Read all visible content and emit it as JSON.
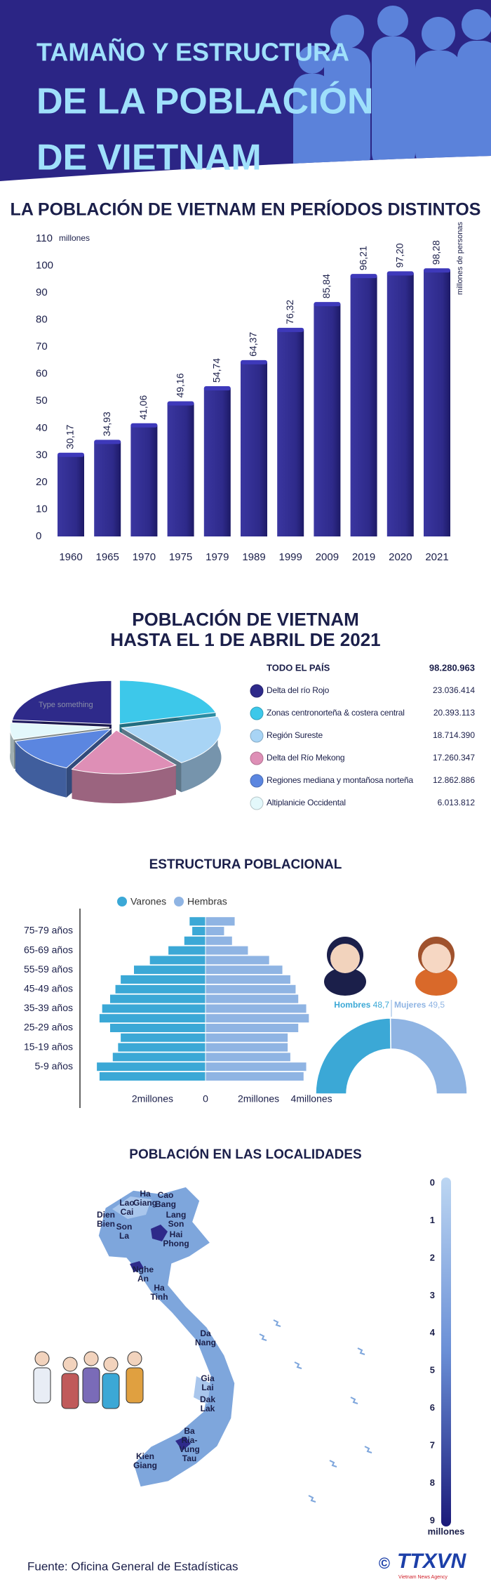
{
  "header": {
    "title_lines": [
      "TAMAÑO Y ESTRUCTURA",
      "DE LA POBLACIÓN",
      "DE VIETNAM"
    ]
  },
  "chart_data": [
    {
      "type": "bar",
      "title": "LA POBLACIÓN DE VIETNAM EN PERÍODOS DISTINTOS",
      "y_unit": "millones",
      "value_note": "millones de personas",
      "categories": [
        "1960",
        "1965",
        "1970",
        "1975",
        "1979",
        "1989",
        "1999",
        "2009",
        "2019",
        "2020",
        "2021"
      ],
      "values": [
        30.17,
        34.93,
        41.06,
        49.16,
        54.74,
        64.37,
        76.32,
        85.84,
        96.21,
        97.2,
        98.28
      ],
      "value_labels": [
        "30,17",
        "34,93",
        "41,06",
        "49,16",
        "54,74",
        "64,37",
        "76,32",
        "85,84",
        "96,21",
        "97,20",
        "98,28"
      ],
      "color": "#2e2a8a",
      "ylim": [
        0,
        110
      ],
      "yticks": [
        0,
        10,
        20,
        30,
        40,
        50,
        60,
        70,
        80,
        90,
        100,
        110
      ],
      "grid": false
    },
    {
      "type": "pie",
      "title_lines": [
        "POBLACIÓN DE VIETNAM",
        "HASTA EL 1 DE ABRIL DE 2021"
      ],
      "total_label": "TODO EL PAÍS",
      "total": {
        "value": 98280963,
        "label": "98.280.963"
      },
      "annotation": "Type something",
      "categories": [
        "Delta del río Rojo",
        "Zonas centronorteña & costera central",
        "Región Sureste",
        "Delta del Río Mekong",
        "Regiones mediana y montañosa norteña",
        "Altiplanicie Occidental"
      ],
      "values": [
        23036414,
        20393113,
        18714390,
        17260347,
        12862886,
        6013812
      ],
      "value_labels": [
        "23.036.414",
        "20.393.113",
        "18.714.390",
        "17.260.347",
        "12.862.886",
        "6.013.812"
      ],
      "colors": [
        "#2e2a8a",
        "#3dc8ea",
        "#a8d4f5",
        "#de8fb6",
        "#5b86e0",
        "#e3f8fb"
      ]
    },
    {
      "type": "pyramid",
      "title": "ESTRUCTURA POBLACIONAL",
      "categories": [
        null,
        "5-9 años",
        null,
        "15-19 años",
        null,
        "25-29 años",
        null,
        "35-39 años",
        null,
        "45-49 años",
        null,
        "55-59 años",
        null,
        "65-69 años",
        null,
        "75-79 años",
        null
      ],
      "series": [
        {
          "name": "Varones",
          "color": "#3ba8d6",
          "values": [
            4.0,
            4.1,
            3.5,
            3.3,
            3.2,
            3.6,
            4.0,
            3.9,
            3.6,
            3.4,
            3.2,
            2.7,
            2.1,
            1.4,
            0.8,
            0.5,
            0.6
          ]
        },
        {
          "name": "Hembras",
          "color": "#8fb4e3",
          "values": [
            3.7,
            3.8,
            3.2,
            3.1,
            3.1,
            3.5,
            3.9,
            3.8,
            3.5,
            3.4,
            3.2,
            2.9,
            2.4,
            1.6,
            1.0,
            0.7,
            1.1
          ]
        }
      ],
      "xlim": [
        -4.5,
        4.5
      ],
      "xticks": [
        {
          "value": -2,
          "label": "2millones"
        },
        0,
        {
          "value": 2,
          "label": "2millones"
        },
        {
          "value": 4,
          "label": "4millones"
        }
      ]
    },
    {
      "type": "half-donut",
      "categories": [
        "Hombres",
        "Mujeres"
      ],
      "values": [
        48.7,
        49.5
      ],
      "value_labels": [
        "48,7",
        "49,5"
      ],
      "colors": [
        "#3ba8d6",
        "#8fb4e3"
      ]
    },
    {
      "type": "map",
      "title": "POBLACIÓN EN LAS LOCALIDADES",
      "places": [
        "Ha Giang",
        "Cao Bang",
        "Lao Cai",
        "Lang Son",
        "Dien Bien",
        "Son La",
        "Hai Phong",
        "Nghe An",
        "Ha Tinh",
        "Da Nang",
        "Gia Lai",
        "Dak Lak",
        "Ba Ria-Vung Tau",
        "Kien Giang"
      ],
      "colorbar": {
        "lim": [
          0,
          9
        ],
        "ticks": [
          0,
          1,
          2,
          3,
          4,
          5,
          6,
          7,
          8,
          9
        ],
        "label": "millones"
      }
    }
  ],
  "footer": {
    "source": "Fuente: Oficina General de Estadísticas",
    "copyright": "©",
    "logo": "TTXVN",
    "logo_sub": "Vietnam News Agency"
  }
}
